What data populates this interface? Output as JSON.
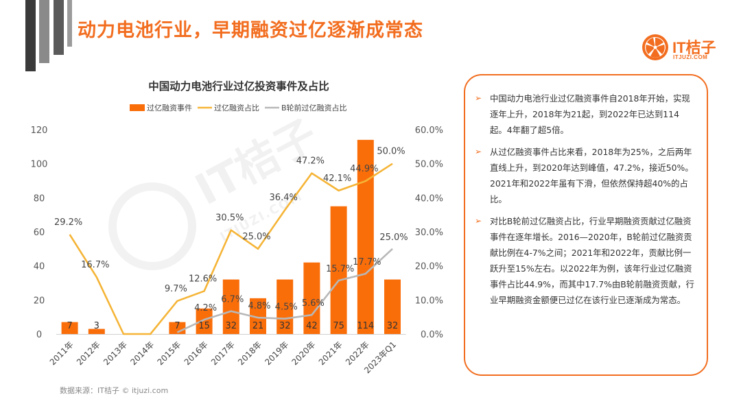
{
  "slide": {
    "title": "动力电池行业，早期融资过亿逐渐成常态",
    "source": "数据来源：IT桔子 © itjuzi.com"
  },
  "logo": {
    "name": "IT桔子",
    "domain": "ITJUZI.COM",
    "icon": "orange-slice-icon",
    "color": "#f26d1f"
  },
  "watermark": {
    "name": "IT桔子",
    "domain": "ITJUZI.COM"
  },
  "colors": {
    "accent": "#f26d1f",
    "bar": "#fa6e0a",
    "line_ratio": "#f5b436",
    "line_b": "#b8b8b8"
  },
  "chart_data": {
    "type": "bar",
    "title": "中国动力电池行业过亿投资事件及占比",
    "categories": [
      "2011年",
      "2012年",
      "2013年",
      "2014年",
      "2015年",
      "2016年",
      "2017年",
      "2018年",
      "2019年",
      "2020年",
      "2021年",
      "2022年",
      "2023年Q1"
    ],
    "series": [
      {
        "name": "过亿融资事件",
        "type": "bar",
        "axis": "left",
        "values": [
          7,
          3,
          0,
          0,
          7,
          15,
          32,
          21,
          32,
          42,
          75,
          114,
          32
        ],
        "labels": [
          "7",
          "3",
          "",
          "",
          "7",
          "15",
          "32",
          "21",
          "32",
          "42",
          "75",
          "114",
          "32"
        ]
      },
      {
        "name": "过亿融资占比",
        "type": "line",
        "axis": "right",
        "values": [
          29.2,
          16.7,
          0,
          0,
          9.7,
          12.6,
          30.5,
          25.0,
          36.4,
          47.2,
          42.1,
          44.9,
          50.0
        ],
        "labels": [
          "29.2%",
          "16.7%",
          "",
          "",
          "9.7%",
          "12.6%",
          "30.5%",
          "25.0%",
          "36.4%",
          "47.2%",
          "42.1%",
          "44.9%",
          "50.0%"
        ]
      },
      {
        "name": "B轮前过亿融资占比",
        "type": "line",
        "axis": "right",
        "values": [
          null,
          null,
          null,
          null,
          0.5,
          4.2,
          6.7,
          4.8,
          4.5,
          5.6,
          15.7,
          17.7,
          25.0
        ],
        "labels": [
          "",
          "",
          "",
          "",
          "",
          "4.2%",
          "6.7%",
          "4.8%",
          "4.5%",
          "5.6%",
          "15.7%",
          "17.7%",
          "25.0%"
        ]
      }
    ],
    "y_left": {
      "ticks": [
        "0",
        "20",
        "40",
        "60",
        "80",
        "100",
        "120"
      ],
      "range": [
        0,
        120
      ]
    },
    "y_right": {
      "ticks": [
        "0.0%",
        "10.0%",
        "20.0%",
        "30.0%",
        "40.0%",
        "50.0%",
        "60.0%"
      ],
      "range": [
        0,
        60
      ]
    },
    "legend_position": "top",
    "grid": false
  },
  "notes": [
    "中国动力电池行业过亿融资事件自2018年开始，实现逐年上升，2018年为21起，到2022年已达到114起。4年翻了超5倍。",
    "从过亿融资事件占比来看，2018年为25%，之后两年直线上升，到2020年达到峰值，47.2%，接近50%。2021年和2022年虽有下滑，但依然保持超40%的占比。",
    "对比B轮前过亿融资占比，行业早期融资贡献过亿融资事件在逐年增长。2016—2020年，B轮前过亿融资贡献比例在4-7%之间；2021年和2022年，贡献比例一跃升至15%左右。以2022年为例，该年行业过亿融资事件占比44.9%，而其中17.7%由B轮前融资贡献，行业早期融资金额便已过亿在该行业已逐渐成为常态。"
  ]
}
